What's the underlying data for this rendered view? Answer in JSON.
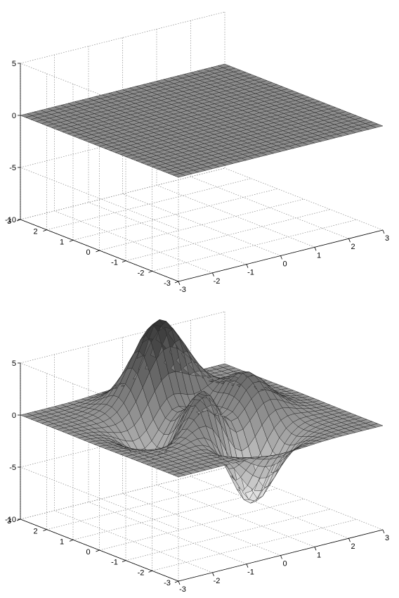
{
  "chart_data": [
    {
      "type": "surface",
      "title": "",
      "surface": "flat",
      "xlim": [
        -3,
        3
      ],
      "ylim": [
        -3,
        3
      ],
      "zlim": [
        -10,
        5
      ],
      "grid": true,
      "colormap": "gray",
      "x_ticks": [
        "-3",
        "-2",
        "-1",
        "0",
        "1",
        "2",
        "3"
      ],
      "y_ticks": [
        "-3",
        "-2",
        "-1",
        "0",
        "1",
        "2",
        "3"
      ],
      "z_ticks": [
        "-10",
        "-5",
        "0",
        "5"
      ]
    },
    {
      "type": "surface",
      "title": "",
      "surface": "peaks",
      "xlim": [
        -3,
        3
      ],
      "ylim": [
        -3,
        3
      ],
      "zlim": [
        -10,
        5
      ],
      "grid": true,
      "colormap": "gray",
      "x_ticks": [
        "-3",
        "-2",
        "-1",
        "0",
        "1",
        "2",
        "3"
      ],
      "y_ticks": [
        "-3",
        "-2",
        "-1",
        "0",
        "1",
        "2",
        "3"
      ],
      "z_ticks": [
        "-10",
        "-5",
        "0",
        "5"
      ]
    }
  ]
}
